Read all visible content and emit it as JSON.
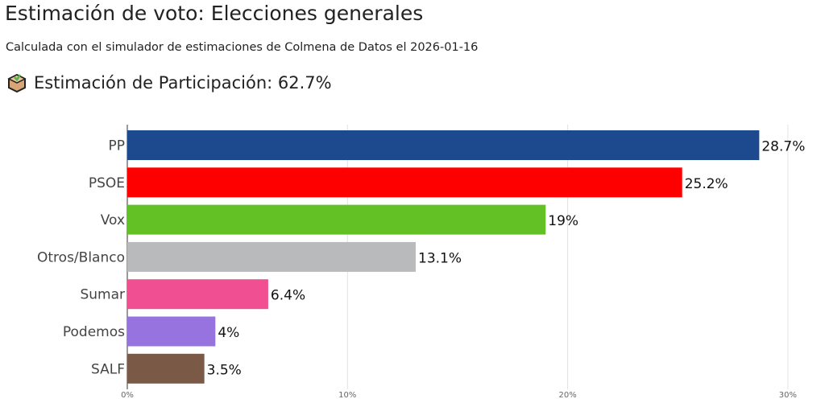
{
  "header": {
    "title": "Estimación de voto: Elecciones generales",
    "subtitle": "Calculada con el simulador de estimaciones de Colmena de Datos el 2026-01-16",
    "turnout_icon": "ballot-box-icon",
    "turnout": "Estimación de Participación: 62.7%"
  },
  "chart_data": {
    "type": "bar",
    "orientation": "horizontal",
    "categories": [
      "PP",
      "PSOE",
      "Vox",
      "Otros/Blanco",
      "Sumar",
      "Podemos",
      "SALF"
    ],
    "values": [
      28.7,
      25.2,
      19,
      13.1,
      6.4,
      4,
      3.5
    ],
    "labels": [
      "28.7%",
      "25.2%",
      "19%",
      "13.1%",
      "6.4%",
      "4%",
      "3.5%"
    ],
    "colors": [
      "#1d4a8f",
      "#ff0000",
      "#63c126",
      "#b9babc",
      "#f04f91",
      "#9673de",
      "#7a5a46"
    ],
    "xlim": [
      0,
      30.5
    ],
    "xticks": [
      0,
      10,
      20,
      30
    ],
    "xtick_labels": [
      "0%",
      "10%",
      "20%",
      "30%"
    ],
    "grid": true
  }
}
